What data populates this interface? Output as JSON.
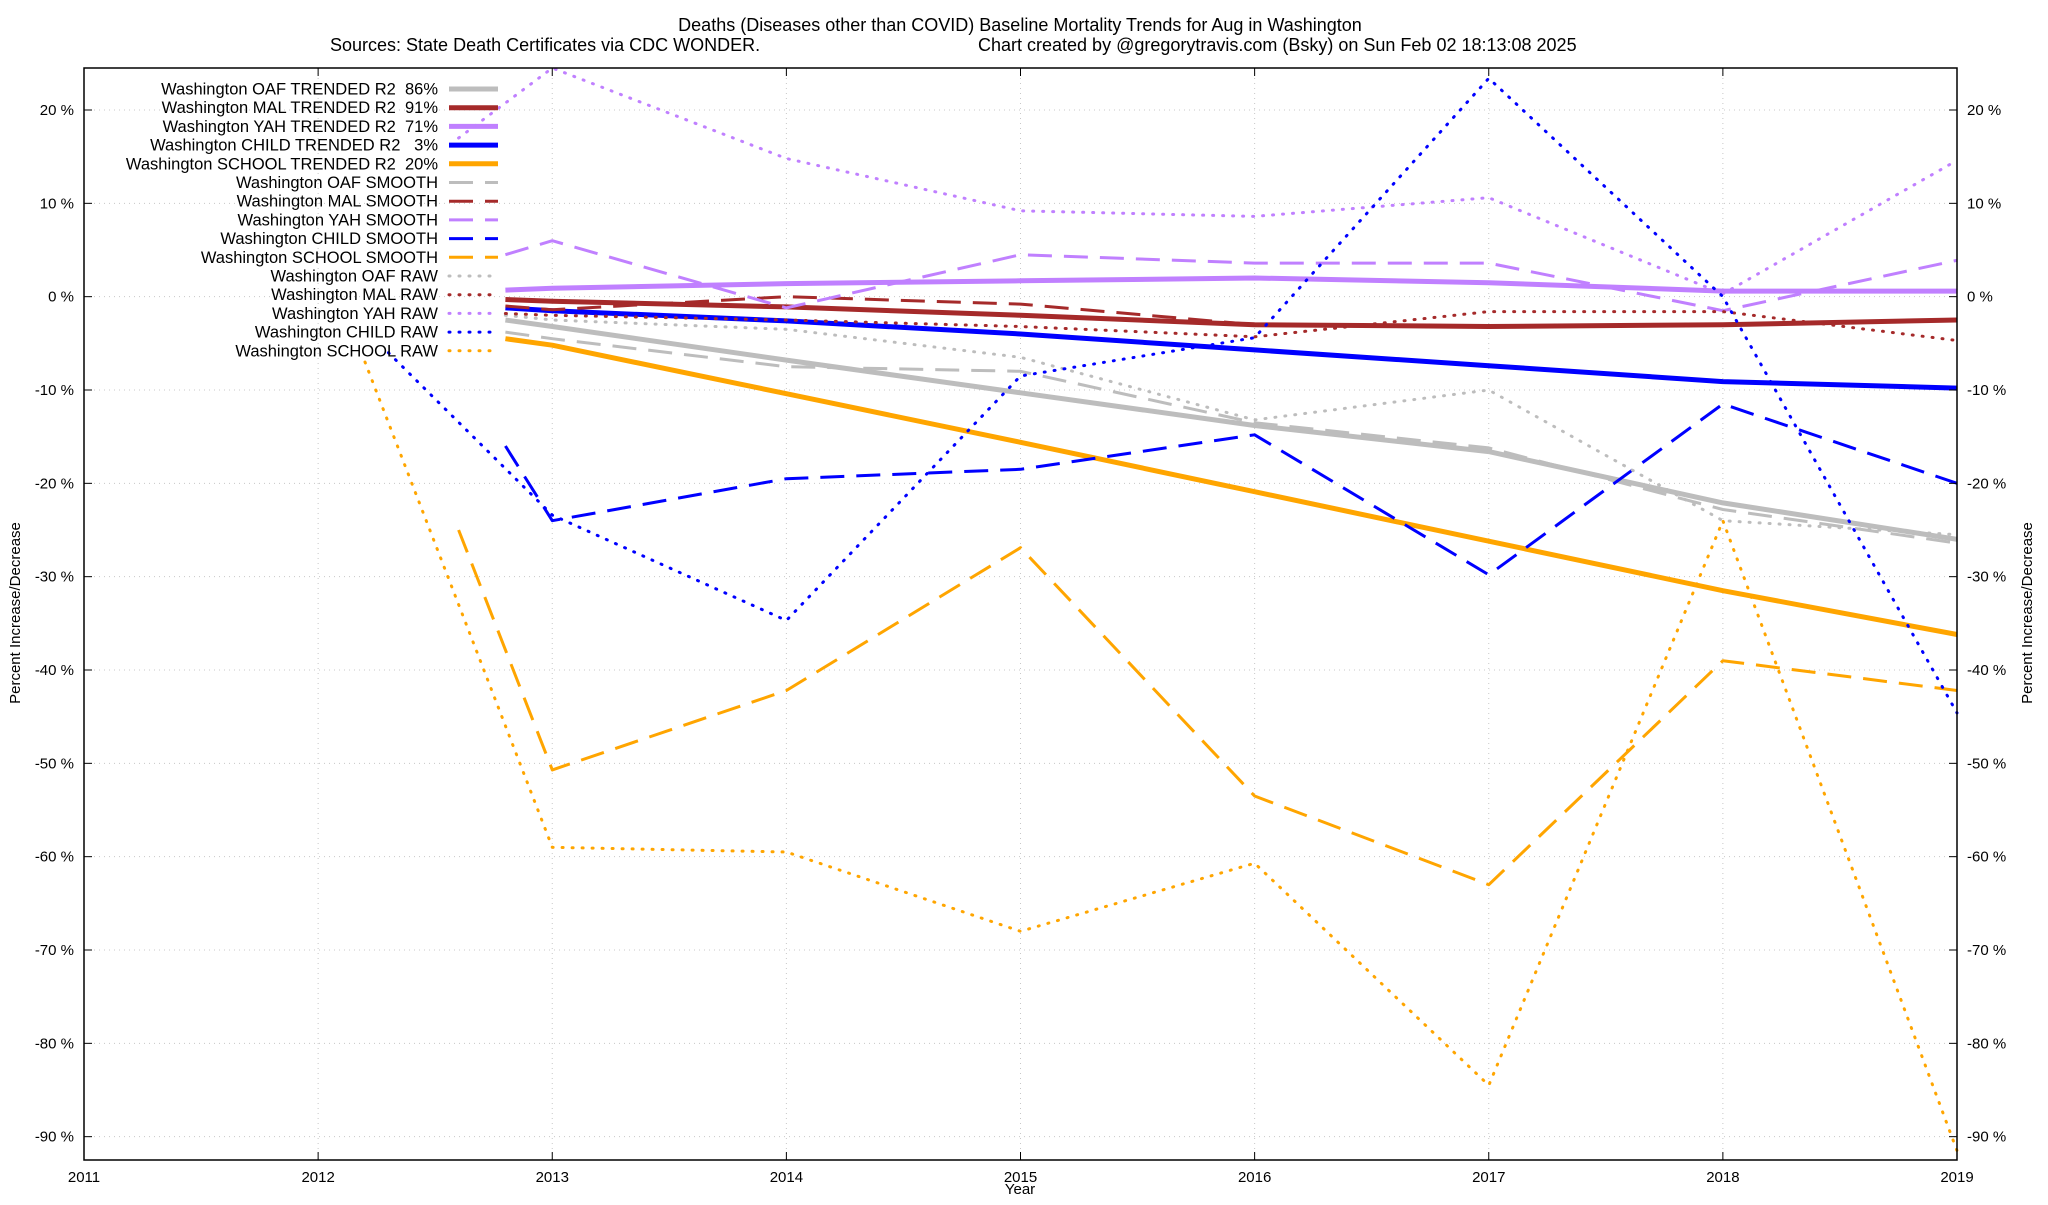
{
  "chart_data": {
    "type": "line",
    "title_line1": "Deaths (Diseases other than COVID)  Baseline Mortality Trends for Aug in Washington",
    "title_line2_left": "Sources: State Death Certificates via CDC WONDER.",
    "title_line2_right": "Chart created by @gregorytravis.com (Bsky) on Sun Feb 02 18:13:08 2025",
    "xlabel": "Year",
    "ylabel_left": "Percent Increase/Decrease",
    "ylabel_right": "Percent Increase/Decrease",
    "xlim": [
      2011,
      2019
    ],
    "ylim": [
      -92.5,
      24.5
    ],
    "x_ticks": [
      2011,
      2012,
      2013,
      2014,
      2015,
      2016,
      2017,
      2018,
      2019
    ],
    "y_ticks": [
      20,
      10,
      0,
      -10,
      -20,
      -30,
      -40,
      -50,
      -60,
      -70,
      -80,
      -90
    ],
    "y_tick_format": "{v} %",
    "grid": true,
    "legend_position": "top-left",
    "series": [
      {
        "name": "Washington OAF TRENDED R2  86%",
        "style": "solid",
        "color": "#bdbdbd",
        "x": [
          2012.8,
          2013,
          2014,
          2015,
          2016,
          2017,
          2018,
          2019
        ],
        "y": [
          -2.5,
          -3.2,
          -6.8,
          -10.3,
          -13.8,
          -16.6,
          -22.1,
          -26.0
        ]
      },
      {
        "name": "Washington MAL TRENDED R2  91%",
        "style": "solid",
        "color": "#a52a2a",
        "x": [
          2012.8,
          2013,
          2014,
          2015,
          2016,
          2017,
          2018,
          2019
        ],
        "y": [
          -0.3,
          -0.5,
          -1.1,
          -2.0,
          -3.0,
          -3.2,
          -3.0,
          -2.5
        ]
      },
      {
        "name": "Washington YAH TRENDED R2  71%",
        "style": "solid",
        "color": "#c080ff",
        "x": [
          2012.8,
          2013,
          2014,
          2015,
          2016,
          2017,
          2018,
          2019
        ],
        "y": [
          0.7,
          0.9,
          1.4,
          1.7,
          2.0,
          1.5,
          0.6,
          0.6
        ]
      },
      {
        "name": "Washington CHILD TRENDED R2   3%",
        "style": "solid",
        "color": "#0000ff",
        "x": [
          2012.8,
          2013,
          2014,
          2015,
          2016,
          2017,
          2018,
          2019
        ],
        "y": [
          -1.2,
          -1.5,
          -2.6,
          -4.0,
          -5.7,
          -7.4,
          -9.1,
          -9.8
        ]
      },
      {
        "name": "Washington SCHOOL TRENDED R2  20%",
        "style": "solid",
        "color": "#ffa500",
        "x": [
          2012.8,
          2013,
          2014,
          2015,
          2016,
          2017,
          2018,
          2019
        ],
        "y": [
          -4.5,
          -5.2,
          -10.4,
          -15.6,
          -20.9,
          -26.2,
          -31.5,
          -36.2
        ]
      },
      {
        "name": "Washington OAF SMOOTH",
        "style": "dashed",
        "color": "#bdbdbd",
        "x": [
          2012.8,
          2013,
          2014,
          2015,
          2016,
          2017,
          2018,
          2019
        ],
        "y": [
          -3.8,
          -4.5,
          -7.5,
          -8.0,
          -13.5,
          -16.2,
          -22.8,
          -26.4
        ]
      },
      {
        "name": "Washington MAL SMOOTH",
        "style": "dashed",
        "color": "#a52a2a",
        "x": [
          2012.8,
          2013,
          2014,
          2015,
          2016,
          2017,
          2018,
          2019
        ],
        "y": [
          -1.0,
          -1.4,
          0.0,
          -0.8,
          -3.0,
          -3.2,
          -3.0,
          -2.5
        ]
      },
      {
        "name": "Washington YAH SMOOTH",
        "style": "dashed",
        "color": "#c080ff",
        "x": [
          2012.8,
          2013,
          2014,
          2015,
          2016,
          2017,
          2018,
          2019
        ],
        "y": [
          4.5,
          6.0,
          -1.2,
          4.5,
          3.6,
          3.6,
          -1.5,
          3.9
        ]
      },
      {
        "name": "Washington CHILD SMOOTH",
        "style": "dashed",
        "color": "#0000ff",
        "x": [
          2012.8,
          2013,
          2014,
          2015,
          2016,
          2017,
          2018,
          2019
        ],
        "y": [
          -16.0,
          -24.0,
          -19.5,
          -18.5,
          -14.8,
          -29.8,
          -11.5,
          -20.0
        ]
      },
      {
        "name": "Washington SCHOOL SMOOTH",
        "style": "dashed",
        "color": "#ffa500",
        "x": [
          2012.6,
          2013,
          2014,
          2015,
          2016,
          2017,
          2018,
          2019
        ],
        "y": [
          -25.0,
          -50.7,
          -42.2,
          -26.9,
          -53.5,
          -63.0,
          -39.0,
          -42.2
        ]
      },
      {
        "name": "Washington OAF RAW",
        "style": "dotted",
        "color": "#bdbdbd",
        "x": [
          2012.8,
          2013,
          2014,
          2015,
          2016,
          2017,
          2018,
          2019
        ],
        "y": [
          -2.0,
          -2.5,
          -3.5,
          -6.5,
          -13.2,
          -10.0,
          -24.0,
          -25.5
        ]
      },
      {
        "name": "Washington MAL RAW",
        "style": "dotted",
        "color": "#a52a2a",
        "x": [
          2012.8,
          2013,
          2014,
          2015,
          2016,
          2017,
          2018,
          2019
        ],
        "y": [
          -1.8,
          -2.0,
          -2.5,
          -3.2,
          -4.3,
          -1.6,
          -1.6,
          -4.7
        ]
      },
      {
        "name": "Washington YAH RAW",
        "style": "dotted",
        "color": "#c080ff",
        "x": [
          2012.6,
          2013,
          2014,
          2015,
          2016,
          2017,
          2018,
          2019
        ],
        "y": [
          17.0,
          24.5,
          14.8,
          9.2,
          8.6,
          10.6,
          0.3,
          14.6
        ]
      },
      {
        "name": "Washington CHILD RAW",
        "style": "dotted",
        "color": "#0000ff",
        "x": [
          2012.3,
          2013,
          2014,
          2015,
          2016,
          2017,
          2018,
          2019
        ],
        "y": [
          -6.0,
          -23.4,
          -34.7,
          -8.5,
          -4.4,
          23.4,
          0.0,
          -44.6
        ]
      },
      {
        "name": "Washington SCHOOL RAW",
        "style": "dotted",
        "color": "#ffa500",
        "x": [
          2012.2,
          2013,
          2014,
          2015,
          2016,
          2017,
          2018,
          2019
        ],
        "y": [
          -7.0,
          -59.0,
          -59.5,
          -68.0,
          -60.7,
          -84.5,
          -24.0,
          -91.5
        ]
      }
    ]
  }
}
